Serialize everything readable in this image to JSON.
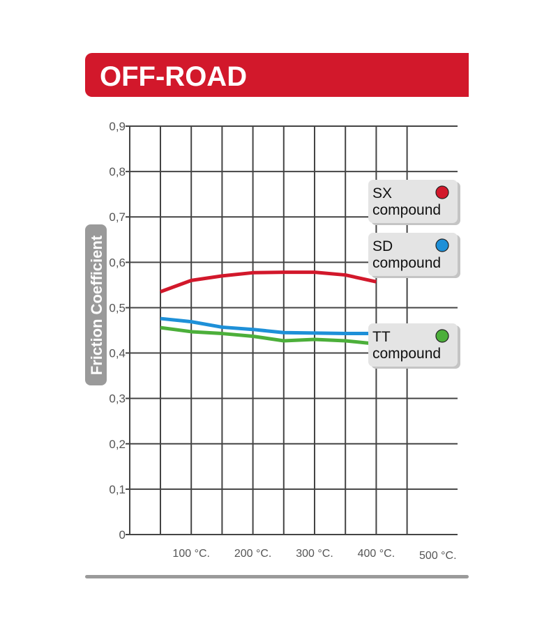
{
  "title": "OFF-ROAD",
  "colors": {
    "banner": "#d2182b",
    "grid": "#444444",
    "axis_badge": "#9a9a9a",
    "legend_box": "#e4e4e4",
    "bottom_rule": "#9a9a9a"
  },
  "chart_data": {
    "type": "line",
    "title": "OFF-ROAD",
    "ylabel": "Friction Coefficient",
    "xlabel": "",
    "ylim": [
      0,
      0.9
    ],
    "xlim": [
      0,
      500
    ],
    "grid": true,
    "y_ticks": [
      "0",
      "0,1",
      "0,2",
      "0,3",
      "0,4",
      "0,5",
      "0,6",
      "0,7",
      "0,8",
      "0,9"
    ],
    "x_ticks": [
      {
        "value": 100,
        "label": "100 °C."
      },
      {
        "value": 200,
        "label": "200 °C."
      },
      {
        "value": 300,
        "label": "300 °C."
      },
      {
        "value": 400,
        "label": "400 °C."
      },
      {
        "value": 500,
        "label": "500 °C."
      }
    ],
    "series": [
      {
        "name": "SX compound",
        "label_line1": "SX",
        "label_line2": "compound",
        "color": "#d2182b",
        "x": [
          50,
          100,
          150,
          200,
          250,
          300,
          350,
          400
        ],
        "y": [
          0.535,
          0.56,
          0.57,
          0.577,
          0.578,
          0.578,
          0.572,
          0.557
        ]
      },
      {
        "name": "SD compound",
        "label_line1": "SD",
        "label_line2": "compound",
        "color": "#1e90d8",
        "x": [
          50,
          100,
          150,
          200,
          250,
          300,
          350,
          400,
          450
        ],
        "y": [
          0.476,
          0.469,
          0.457,
          0.452,
          0.445,
          0.444,
          0.443,
          0.443,
          0.443
        ]
      },
      {
        "name": "TT compound",
        "label_line1": "TT",
        "label_line2": "compound",
        "color": "#4caf3a",
        "x": [
          50,
          100,
          150,
          200,
          250,
          300,
          350,
          400,
          450
        ],
        "y": [
          0.456,
          0.447,
          0.443,
          0.437,
          0.427,
          0.43,
          0.427,
          0.42,
          0.42
        ]
      }
    ],
    "legend": "right"
  }
}
